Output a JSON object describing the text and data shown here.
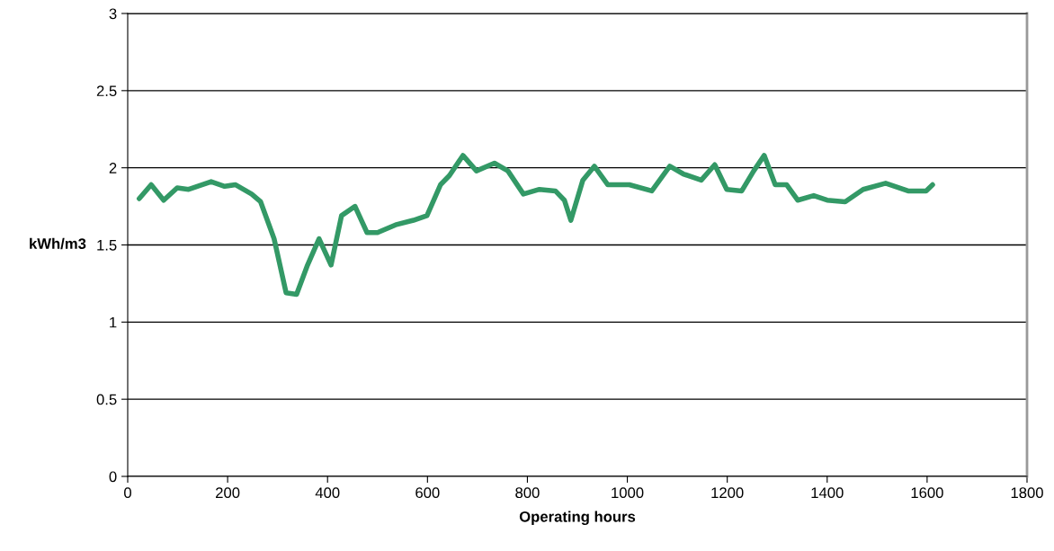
{
  "chart_data": {
    "type": "line",
    "xlabel": "Operating hours",
    "ylabel": "kWh/m3",
    "xlim": [
      0,
      1800
    ],
    "xticks": [
      0,
      200,
      400,
      600,
      800,
      1000,
      1200,
      1400,
      1600,
      1800
    ],
    "ylim": [
      0,
      3
    ],
    "yticks": [
      0,
      0.5,
      1,
      1.5,
      2,
      2.5,
      3
    ],
    "grid": "y",
    "marker": "none",
    "line_style": "solid",
    "series": [
      {
        "color": "#339966",
        "x": [
          23,
          47,
          72,
          99,
          122,
          167,
          194,
          216,
          248,
          266,
          293,
          317,
          338,
          360,
          383,
          407,
          428,
          455,
          479,
          500,
          536,
          572,
          599,
          626,
          644,
          671,
          698,
          734,
          761,
          792,
          824,
          856,
          874,
          887,
          911,
          934,
          961,
          1004,
          1049,
          1085,
          1112,
          1148,
          1175,
          1199,
          1229,
          1253,
          1274,
          1296,
          1319,
          1341,
          1373,
          1400,
          1436,
          1472,
          1517,
          1562,
          1598,
          1611
        ],
        "values": [
          1.8,
          1.89,
          1.79,
          1.87,
          1.86,
          1.91,
          1.88,
          1.89,
          1.83,
          1.78,
          1.54,
          1.19,
          1.18,
          1.37,
          1.54,
          1.37,
          1.69,
          1.75,
          1.58,
          1.58,
          1.63,
          1.66,
          1.69,
          1.89,
          1.95,
          2.08,
          1.98,
          2.03,
          1.98,
          1.83,
          1.86,
          1.85,
          1.79,
          1.66,
          1.92,
          2.01,
          1.89,
          1.89,
          1.85,
          2.01,
          1.96,
          1.92,
          2.02,
          1.86,
          1.85,
          1.98,
          2.08,
          1.89,
          1.89,
          1.79,
          1.82,
          1.79,
          1.78,
          1.86,
          1.9,
          1.85,
          1.85,
          1.89
        ]
      }
    ]
  }
}
